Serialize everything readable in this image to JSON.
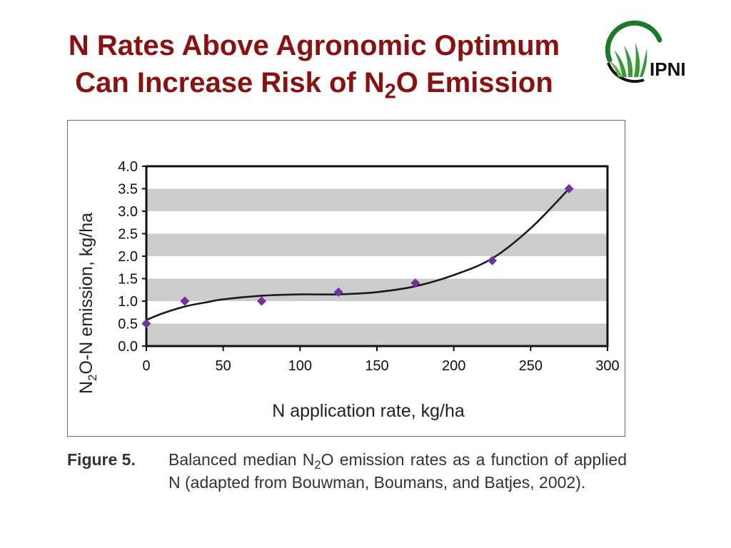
{
  "slide": {
    "title_line1": "N Rates Above Agronomic Optimum",
    "title_line2_pre": "Can Increase Risk of N",
    "title_line2_sub": "2",
    "title_line2_post": "O Emission"
  },
  "logo": {
    "text": "IPNI",
    "color": "#1a7a2a"
  },
  "caption": {
    "label": "Figure 5.",
    "text_pre": "Balanced median N",
    "text_sub": "2",
    "text_post": "O emission rates as a function of applied N (adapted from Bouwman, Boumans, and Batjes, 2002)."
  },
  "chart_data": {
    "type": "scatter",
    "title": "",
    "xlabel": "N application rate, kg/ha",
    "ylabel_pre": "N",
    "ylabel_sub": "2",
    "ylabel_post": "O-N emission, kg/ha",
    "xlim": [
      0,
      300
    ],
    "ylim": [
      0,
      4
    ],
    "x_ticks": [
      "0",
      "50",
      "100",
      "150",
      "200",
      "250",
      "300"
    ],
    "y_ticks": [
      "0.0",
      "0.5",
      "1.0",
      "1.5",
      "2.0",
      "2.5",
      "3.0",
      "3.5",
      "4.0"
    ],
    "bands": [
      [
        0,
        0.5
      ],
      [
        1.0,
        1.5
      ],
      [
        2.0,
        2.5
      ],
      [
        3.0,
        3.5
      ]
    ],
    "points": [
      {
        "x": 0,
        "y": 0.5
      },
      {
        "x": 25,
        "y": 1.0
      },
      {
        "x": 75,
        "y": 1.0
      },
      {
        "x": 125,
        "y": 1.2
      },
      {
        "x": 175,
        "y": 1.4
      },
      {
        "x": 225,
        "y": 1.9
      },
      {
        "x": 275,
        "y": 3.5
      }
    ],
    "fit_curve": [
      {
        "x": 0,
        "y": 0.58
      },
      {
        "x": 10,
        "y": 0.72
      },
      {
        "x": 25,
        "y": 0.88
      },
      {
        "x": 40,
        "y": 0.98
      },
      {
        "x": 50,
        "y": 1.04
      },
      {
        "x": 75,
        "y": 1.12
      },
      {
        "x": 100,
        "y": 1.15
      },
      {
        "x": 125,
        "y": 1.15
      },
      {
        "x": 150,
        "y": 1.2
      },
      {
        "x": 175,
        "y": 1.33
      },
      {
        "x": 200,
        "y": 1.58
      },
      {
        "x": 225,
        "y": 1.95
      },
      {
        "x": 250,
        "y": 2.62
      },
      {
        "x": 275,
        "y": 3.5
      }
    ],
    "grid": false,
    "legend": "none",
    "colors": {
      "marker": "#7030a0",
      "band": "#cccccc",
      "curve": "#1a1a1a",
      "axis": "#111111"
    }
  }
}
